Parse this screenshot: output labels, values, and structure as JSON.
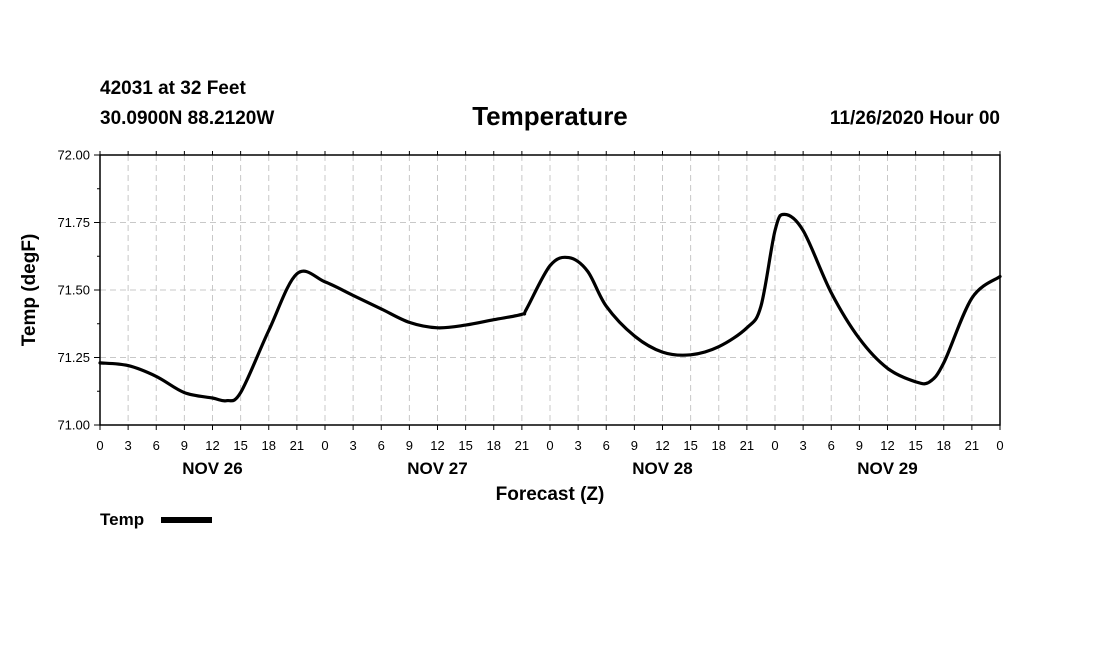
{
  "header": {
    "station": "42031 at 32 Feet",
    "coords": "30.0900N 88.2120W",
    "title": "Temperature",
    "datetime": "11/26/2020 Hour 00"
  },
  "chart_data": {
    "type": "line",
    "title": "Temperature",
    "xlabel": "Forecast (Z)",
    "ylabel": "Temp (degF)",
    "ylim": [
      71.0,
      72.0
    ],
    "yticks": [
      "71.00",
      "71.25",
      "71.50",
      "71.75",
      "72.00"
    ],
    "xlim": [
      0,
      96
    ],
    "x_tick_step_hours": 3,
    "x_tick_labels": [
      "0",
      "3",
      "6",
      "9",
      "12",
      "15",
      "18",
      "21",
      "0",
      "3",
      "6",
      "9",
      "12",
      "15",
      "18",
      "21",
      "0",
      "3",
      "6",
      "9",
      "12",
      "15",
      "18",
      "21",
      "0",
      "3",
      "6",
      "9",
      "12",
      "15",
      "18",
      "21",
      "0"
    ],
    "day_labels": [
      {
        "label": "NOV 26",
        "center_hour": 12
      },
      {
        "label": "NOV 27",
        "center_hour": 36
      },
      {
        "label": "NOV 28",
        "center_hour": 60
      },
      {
        "label": "NOV 29",
        "center_hour": 84
      }
    ],
    "grid": true,
    "legend_position": "bottom-left",
    "series": [
      {
        "name": "Temp",
        "color": "#000000",
        "x": [
          0,
          3,
          6,
          9,
          12,
          13.5,
          15,
          18,
          21,
          24,
          27,
          30,
          33,
          36,
          39,
          42,
          45,
          45.5,
          48,
          50,
          52,
          54,
          57,
          60,
          63,
          66,
          69,
          70.5,
          72,
          73,
          75,
          78,
          81,
          84,
          87,
          88.5,
          90,
          93,
          96
        ],
        "values": [
          71.23,
          71.22,
          71.18,
          71.12,
          71.1,
          71.09,
          71.12,
          71.35,
          71.56,
          71.53,
          71.48,
          71.43,
          71.38,
          71.36,
          71.37,
          71.39,
          71.41,
          71.43,
          71.59,
          71.62,
          71.57,
          71.44,
          71.33,
          71.27,
          71.26,
          71.29,
          71.36,
          71.44,
          71.72,
          71.78,
          71.72,
          71.49,
          71.32,
          71.21,
          71.16,
          71.16,
          71.23,
          71.47,
          71.55
        ]
      }
    ]
  },
  "legend": {
    "label": "Temp",
    "color": "#000000"
  }
}
